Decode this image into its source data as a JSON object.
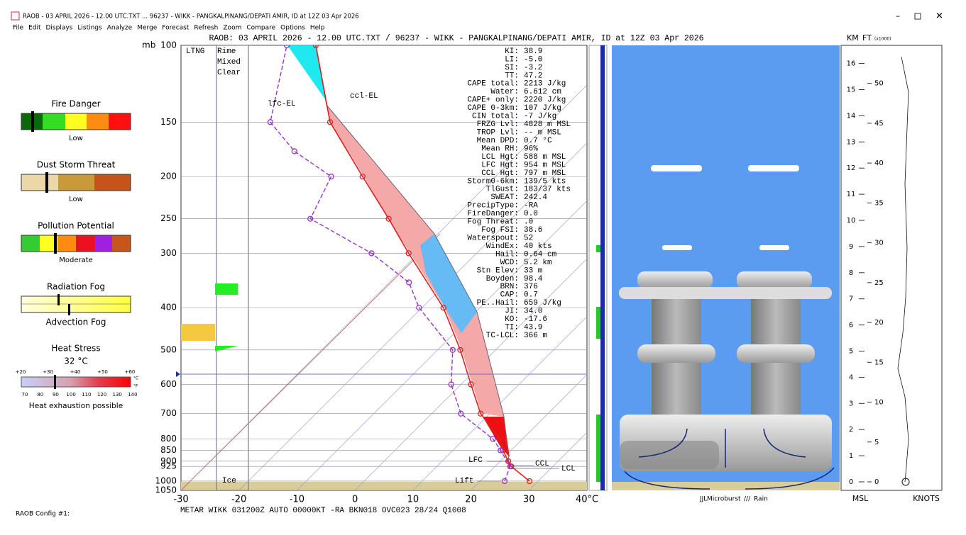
{
  "window": {
    "title": "RAOB - 03 APRIL 2026 - 12.00 UTC.TXT ... 96237 - WIKK - PANGKALPINANG/DEPATI AMIR, ID at 12Z 03 Apr 2026",
    "menu": [
      "File",
      "Edit",
      "Displays",
      "Listings",
      "Analyze",
      "Merge",
      "Forecast",
      "Refresh",
      "Zoom",
      "Compare",
      "Options",
      "Help"
    ]
  },
  "left_panel": {
    "fire": {
      "title": "Fire Danger",
      "level": "Low"
    },
    "dust": {
      "title": "Dust Storm Threat",
      "level": "Low"
    },
    "pollution": {
      "title": "Pollution Potential",
      "level": "Moderate"
    },
    "fog": {
      "top": "Radiation Fog",
      "bottom": "Advection Fog"
    },
    "heat": {
      "title": "Heat Stress",
      "temp": "32 °C",
      "c_labels": [
        "+20",
        "+30",
        "+40",
        "+50",
        "+60"
      ],
      "c_unit": "°C",
      "f_labels": [
        "70",
        "80",
        "90",
        "100",
        "110",
        "120",
        "130",
        "140"
      ],
      "f_unit": "°F",
      "note": "Heat exhaustion possible"
    }
  },
  "config": "RAOB Config #1:",
  "chart_data": {
    "type": "skewt",
    "title": "RAOB:  03 APRIL 2026 - 12.00 UTC.TXT / 96237 - WIKK - PANGKALPINANG/DEPATI AMIR, ID at 12Z 03 Apr 2026",
    "y_unit": "mb",
    "xlim": [
      -30,
      40
    ],
    "xticks": [
      -30,
      -20,
      -10,
      0,
      10,
      20,
      30,
      {
        "value": 40,
        "label": "40°C"
      }
    ],
    "ylim": [
      1050,
      100
    ],
    "yticks": [
      100,
      150,
      200,
      250,
      300,
      400,
      500,
      600,
      700,
      800,
      850,
      900,
      925,
      1000,
      1050
    ],
    "log_y": true,
    "series": [
      {
        "color": "#e02020",
        "pressure": [
          1000,
          925,
          900,
          850,
          800,
          700,
          600,
          500,
          400,
          300,
          250,
          200,
          150,
          100
        ],
        "values": [
          28.5,
          22.8,
          21.4,
          18.6,
          16.1,
          8.4,
          1.7,
          -6.1,
          -16.3,
          -31.7,
          -41.1,
          -52.9,
          -67.9,
          -83.6
        ]
      },
      {
        "color": "#9933cc",
        "pressure": [
          1000,
          925,
          850,
          800,
          700,
          600,
          500,
          400,
          350,
          300,
          250,
          200,
          175,
          150,
          100
        ],
        "values": [
          24.2,
          22.6,
          18.2,
          14.9,
          5.0,
          -1.7,
          -7.4,
          -20.5,
          -26.6,
          -38.1,
          -54.6,
          -58.3,
          -69,
          -78.2,
          -88.6
        ]
      }
    ],
    "annotations": {
      "ccl_el": "ccl-EL",
      "lfc_el": "lfc-EL",
      "lfc": "LFC",
      "ccl": "CCL",
      "lcl": "LCL",
      "lift": "Lift",
      "ltng": "LTNG",
      "rime": "Rime",
      "mixed": "Mixed",
      "clear": "Clear",
      "ice": "Ice"
    },
    "metar": "METAR WIKK 031200Z AUTO 00000KT -RA BKN018 OVC023 28/24 Q1008"
  },
  "indices": [
    [
      "KI:",
      "38.9"
    ],
    [
      "LI:",
      "-5.0"
    ],
    [
      "SI:",
      "-3.2"
    ],
    [
      "TT:",
      "47.2"
    ],
    [
      "CAPE total:",
      "2213 J/kg"
    ],
    [
      "Water:",
      "6.612 cm"
    ],
    [
      "CAPE+ only:",
      "2220 J/kg"
    ],
    [
      "CAPE 0-3km:",
      "107 J/kg"
    ],
    [
      "CIN total:",
      "-7 J/kg"
    ],
    [
      "FRZG Lvl:",
      "4828 m MSL"
    ],
    [
      "TROP Lvl:",
      "-- m MSL"
    ],
    [
      "Mean DPD:",
      "0.7 °C"
    ],
    [
      "Mean RH:",
      "96%"
    ],
    [
      "LCL Hgt:",
      "588 m MSL"
    ],
    [
      "LFC Hgt:",
      "954 m MSL"
    ],
    [
      "CCL Hgt:",
      "797 m MSL"
    ],
    [
      "Storm0-6km:",
      "139/5 kts"
    ],
    [
      "TlGust:",
      "183/37 kts"
    ],
    [
      "SWEAT:",
      "242.4"
    ],
    [
      "PrecipType:",
      "-RA"
    ],
    [
      "FireDanger:",
      "0.0"
    ],
    [
      "Fog Threat:",
      ".0"
    ],
    [
      "Fog FSI:",
      "38.6"
    ],
    [
      "Waterspout:",
      "52"
    ],
    [
      "WindEx:",
      "40 kts"
    ],
    [
      "Hail:",
      "0.64 cm"
    ],
    [
      "WCD:",
      "5.2 km"
    ],
    [
      "Stn Elev:",
      "33 m"
    ],
    [
      "Boyden:",
      "98.4"
    ],
    [
      "BRN:",
      "376"
    ],
    [
      "CAP:",
      "0.7"
    ],
    [
      "PE..Hail:",
      "659 J/kg"
    ],
    [
      "JI:",
      "34.0"
    ],
    [
      "KO:",
      "-17.6"
    ],
    [
      "TI:",
      "43.9"
    ],
    [
      "TC-LCL:",
      "366 m"
    ]
  ],
  "cloud_legend": {
    "microburst": "Microburst",
    "rain": "Rain"
  },
  "height_panel": {
    "km_label": "KM",
    "ft_label": "FT",
    "ft_unit": "(x1000)",
    "km_ticks": [
      0,
      1,
      2,
      3,
      4,
      5,
      6,
      7,
      8,
      9,
      10,
      11,
      12,
      13,
      14,
      15,
      16
    ],
    "ft_ticks": [
      0,
      5,
      10,
      15,
      20,
      25,
      30,
      35,
      40,
      45,
      50
    ],
    "msl": "MSL",
    "knots": "KNOTS"
  }
}
